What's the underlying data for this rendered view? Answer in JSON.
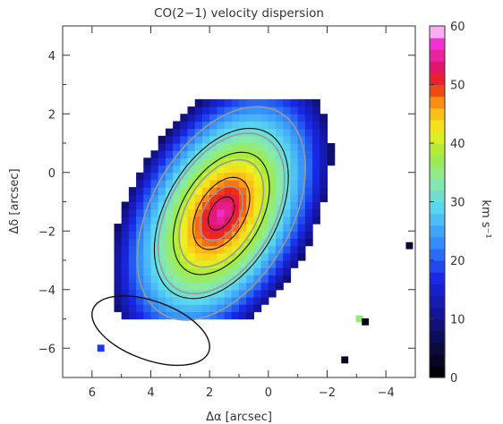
{
  "chart_data": {
    "type": "heatmap",
    "title": "CO(2−1) velocity dispersion",
    "xlabel": "Δα [arcsec]",
    "ylabel": "Δδ [arcsec]",
    "colorbar_label": "km s⁻¹",
    "xlim": [
      7.0,
      -5.0
    ],
    "ylim": [
      -7.0,
      5.0
    ],
    "x_ticks": [
      "6",
      "4",
      "2",
      "0",
      "−2",
      "−4"
    ],
    "y_ticks": [
      "4",
      "2",
      "0",
      "−2",
      "−4",
      "−6"
    ],
    "colorbar_range": [
      0,
      60
    ],
    "colorbar_ticks": [
      "0",
      "10",
      "20",
      "30",
      "40",
      "50",
      "60"
    ],
    "grid": false,
    "map": {
      "center": [
        1.6,
        -1.4
      ],
      "semi_major_arcsec": 5.2,
      "semi_minor_arcsec": 3.1,
      "position_angle_deg": 120,
      "peak_dispersion": 57,
      "edge_dispersion": 8
    },
    "intensity_contours": [
      0.3,
      0.5,
      0.7,
      0.9
    ],
    "dispersion_contours": [
      30,
      38,
      46,
      52
    ],
    "beam": {
      "center": [
        4.0,
        -5.4
      ],
      "major_arcsec": 4.2,
      "minor_arcsec": 2.0,
      "position_angle_deg": 70
    },
    "isolated_pixels": [
      {
        "x": 5.7,
        "y": -6.0,
        "value": 18
      },
      {
        "x": -3.1,
        "y": -5.0,
        "value": 36
      },
      {
        "x": -3.3,
        "y": -5.1,
        "value": 2
      },
      {
        "x": -4.8,
        "y": -2.5,
        "value": 4
      },
      {
        "x": -2.6,
        "y": -6.4,
        "value": 3
      }
    ]
  }
}
